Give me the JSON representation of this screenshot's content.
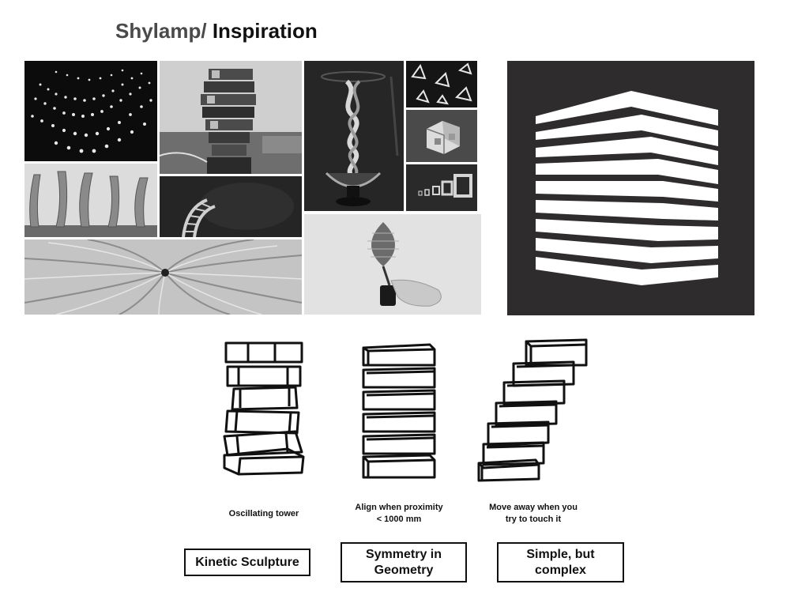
{
  "header": {
    "title_prefix": "Shylamp/",
    "title_main": "Inspiration"
  },
  "concepts": [
    {
      "caption": "Oscillating tower",
      "label": "Kinetic Sculpture"
    },
    {
      "caption": "Align when proximity\n< 1000 mm",
      "label": "Symmetry in\nGeometry"
    },
    {
      "caption": "Move away when you\ntry to touch it",
      "label": "Simple, but\ncomplex"
    }
  ],
  "colors": {
    "logo_bg": "#2e2c2d",
    "logo_bars": "#ffffff"
  }
}
